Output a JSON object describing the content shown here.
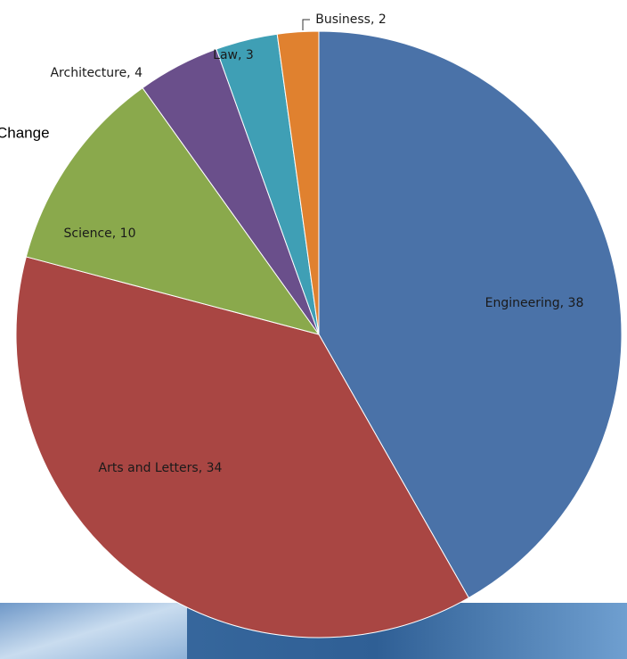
{
  "chart_data": {
    "type": "pie",
    "values": [
      38,
      34,
      10,
      4,
      3,
      2
    ],
    "value_labels": [
      "Engineering, 38",
      "Arts and Letters, 34",
      "Science, 10",
      "Architecture, 4",
      "Law, 3",
      "Business, 2"
    ],
    "colors": [
      "#4a72a8",
      "#a94643",
      "#8aa94c",
      "#6a4f8b",
      "#3f9fb5",
      "#e0812f"
    ]
  },
  "slide": {
    "fragment_text": "Change"
  }
}
